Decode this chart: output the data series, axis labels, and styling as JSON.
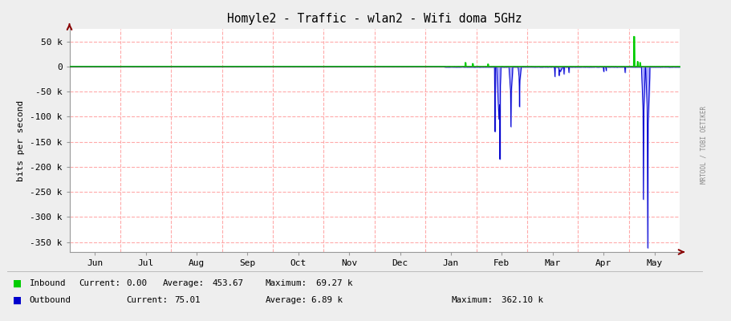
{
  "title": "Homyle2 - Traffic - wlan2 - Wifi doma 5GHz",
  "ylabel": "bits per second",
  "bg_color": "#eeeeee",
  "plot_bg_color": "#ffffff",
  "grid_color": "#ffaaaa",
  "ylim": [
    -370000,
    75000
  ],
  "yticks": [
    50000,
    0,
    -50000,
    -100000,
    -150000,
    -200000,
    -250000,
    -300000,
    -350000
  ],
  "ytick_labels": [
    "50 k",
    "0",
    "-50 k",
    "-100 k",
    "-150 k",
    "-200 k",
    "-250 k",
    "-300 k",
    "-350 k"
  ],
  "x_month_labels": [
    "Jun",
    "Jul",
    "Aug",
    "Sep",
    "Oct",
    "Nov",
    "Dec",
    "Jan",
    "Feb",
    "Mar",
    "Apr",
    "May"
  ],
  "inbound_color": "#00cc00",
  "outbound_color": "#0000cc",
  "outbound_fill_color": "#aaaaff",
  "arrow_color": "#880000",
  "right_label": "MRTOOL / TOBI OETIKER"
}
